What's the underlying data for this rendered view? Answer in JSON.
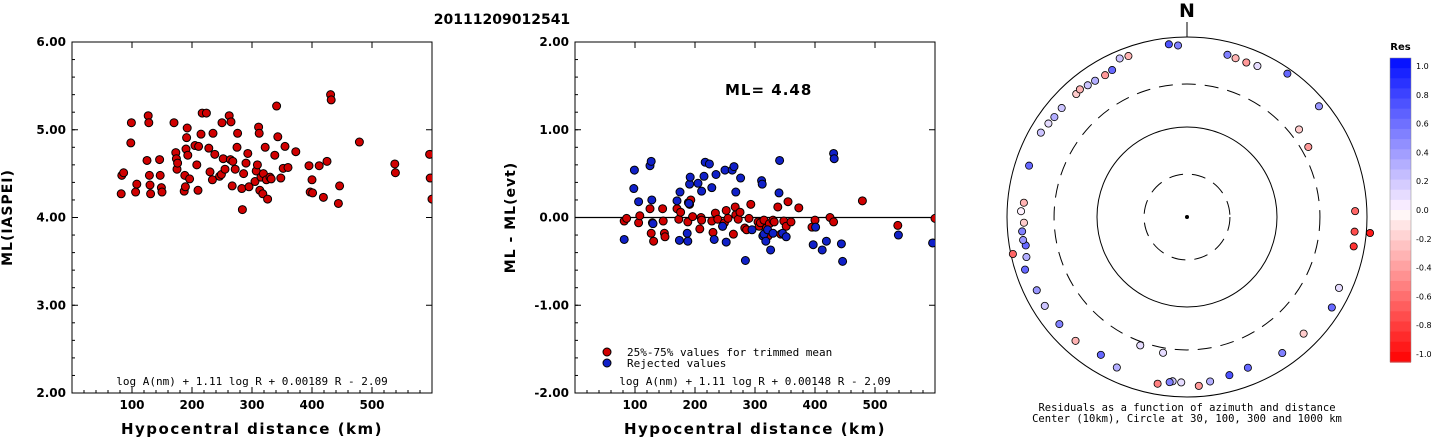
{
  "page": {
    "title": "20111209012541"
  },
  "chart_data": [
    {
      "type": "scatter",
      "title": "",
      "xlabel": "Hypocentral distance (km)",
      "ylabel": "ML(IASPEI)",
      "xlim": [
        0,
        600
      ],
      "ylim": [
        2.0,
        6.0
      ],
      "xticks": [
        100,
        200,
        300,
        400,
        500
      ],
      "yticks": [
        2.0,
        3.0,
        4.0,
        5.0,
        6.0
      ],
      "ytick_labels": [
        "2.00",
        "3.00",
        "4.00",
        "5.00",
        "6.00"
      ],
      "formula": "log A(nm) + 1.11 log R + 0.00189 R - 2.09",
      "point_color": "#d00000",
      "points": [
        [
          82,
          4.27
        ],
        [
          83,
          4.48
        ],
        [
          86,
          4.51
        ],
        [
          98,
          4.85
        ],
        [
          99,
          5.08
        ],
        [
          106,
          4.29
        ],
        [
          108,
          4.38
        ],
        [
          125,
          4.65
        ],
        [
          127,
          5.16
        ],
        [
          128,
          5.08
        ],
        [
          129,
          4.48
        ],
        [
          130,
          4.37
        ],
        [
          131,
          4.27
        ],
        [
          146,
          4.66
        ],
        [
          147,
          4.48
        ],
        [
          149,
          4.34
        ],
        [
          150,
          4.29
        ],
        [
          170,
          5.08
        ],
        [
          173,
          4.74
        ],
        [
          174,
          4.67
        ],
        [
          175,
          4.55
        ],
        [
          176,
          4.62
        ],
        [
          187,
          4.3
        ],
        [
          188,
          4.48
        ],
        [
          189,
          4.35
        ],
        [
          190,
          4.78
        ],
        [
          191,
          4.91
        ],
        [
          192,
          5.02
        ],
        [
          193,
          4.71
        ],
        [
          196,
          4.44
        ],
        [
          205,
          4.82
        ],
        [
          208,
          4.6
        ],
        [
          210,
          4.31
        ],
        [
          211,
          4.81
        ],
        [
          215,
          4.95
        ],
        [
          217,
          5.19
        ],
        [
          224,
          5.19
        ],
        [
          228,
          4.79
        ],
        [
          230,
          4.52
        ],
        [
          234,
          4.43
        ],
        [
          235,
          4.96
        ],
        [
          238,
          4.72
        ],
        [
          246,
          4.47
        ],
        [
          249,
          4.49
        ],
        [
          250,
          5.08
        ],
        [
          252,
          4.67
        ],
        [
          255,
          4.55
        ],
        [
          262,
          5.16
        ],
        [
          264,
          4.66
        ],
        [
          265,
          5.09
        ],
        [
          267,
          4.36
        ],
        [
          268,
          4.64
        ],
        [
          272,
          4.55
        ],
        [
          275,
          4.8
        ],
        [
          276,
          4.96
        ],
        [
          283,
          4.33
        ],
        [
          284,
          4.09
        ],
        [
          286,
          4.5
        ],
        [
          290,
          4.62
        ],
        [
          293,
          4.73
        ],
        [
          295,
          4.35
        ],
        [
          305,
          4.41
        ],
        [
          307,
          4.53
        ],
        [
          309,
          4.6
        ],
        [
          311,
          5.03
        ],
        [
          312,
          4.96
        ],
        [
          313,
          4.31
        ],
        [
          315,
          4.46
        ],
        [
          318,
          4.27
        ],
        [
          319,
          4.5
        ],
        [
          322,
          4.8
        ],
        [
          324,
          4.43
        ],
        [
          326,
          4.21
        ],
        [
          330,
          4.46
        ],
        [
          332,
          4.44
        ],
        [
          338,
          4.71
        ],
        [
          341,
          5.27
        ],
        [
          343,
          4.92
        ],
        [
          348,
          4.45
        ],
        [
          352,
          4.56
        ],
        [
          355,
          4.81
        ],
        [
          360,
          4.57
        ],
        [
          373,
          4.75
        ],
        [
          395,
          4.59
        ],
        [
          397,
          4.29
        ],
        [
          400,
          4.43
        ],
        [
          401,
          4.28
        ],
        [
          412,
          4.59
        ],
        [
          419,
          4.23
        ],
        [
          425,
          4.64
        ],
        [
          431,
          5.4
        ],
        [
          432,
          5.34
        ],
        [
          444,
          4.16
        ],
        [
          446,
          4.36
        ],
        [
          479,
          4.86
        ],
        [
          538,
          4.61
        ],
        [
          539,
          4.51
        ],
        [
          596,
          4.72
        ],
        [
          597,
          4.45
        ],
        [
          600,
          4.21
        ]
      ]
    },
    {
      "type": "scatter",
      "title": "",
      "xlabel": "Hypocentral distance (km)",
      "ylabel": "ML - ML(evt)",
      "xlim": [
        0,
        600
      ],
      "ylim": [
        -2.0,
        2.0
      ],
      "xticks": [
        100,
        200,
        300,
        400,
        500
      ],
      "yticks": [
        -2.0,
        -1.0,
        0.0,
        1.0,
        2.0
      ],
      "ytick_labels": [
        "-2.00",
        "-1.00",
        "0.00",
        "1.00",
        "2.00"
      ],
      "annotation": "ML= 4.48",
      "formula": "log A(nm) + 1.11 log R + 0.00148 R - 2.09",
      "legend": [
        {
          "label": "25%-75% values for trimmed mean",
          "color": "#d00000"
        },
        {
          "label": "Rejected values",
          "color": "#1020c8"
        }
      ],
      "series": [
        {
          "name": "25%-75% values for trimmed mean",
          "color": "#d00000",
          "points": [
            [
              82,
              -0.04
            ],
            [
              86,
              -0.01
            ],
            [
              106,
              -0.06
            ],
            [
              108,
              0.02
            ],
            [
              125,
              0.1
            ],
            [
              127,
              -0.18
            ],
            [
              129,
              -0.06
            ],
            [
              131,
              -0.27
            ],
            [
              146,
              0.1
            ],
            [
              147,
              -0.04
            ],
            [
              149,
              -0.18
            ],
            [
              150,
              -0.22
            ],
            [
              170,
              0.1
            ],
            [
              173,
              -0.02
            ],
            [
              176,
              0.06
            ],
            [
              188,
              -0.05
            ],
            [
              189,
              0.17
            ],
            [
              191,
              0.15
            ],
            [
              193,
              0.2
            ],
            [
              196,
              0.01
            ],
            [
              208,
              -0.13
            ],
            [
              210,
              0.0
            ],
            [
              211,
              -0.03
            ],
            [
              228,
              -0.04
            ],
            [
              230,
              -0.17
            ],
            [
              234,
              0.05
            ],
            [
              238,
              -0.02
            ],
            [
              246,
              -0.1
            ],
            [
              249,
              -0.06
            ],
            [
              252,
              0.08
            ],
            [
              255,
              -0.01
            ],
            [
              264,
              -0.19
            ],
            [
              267,
              0.12
            ],
            [
              268,
              0.03
            ],
            [
              272,
              -0.02
            ],
            [
              275,
              0.06
            ],
            [
              283,
              -0.12
            ],
            [
              286,
              -0.14
            ],
            [
              290,
              -0.01
            ],
            [
              293,
              0.15
            ],
            [
              305,
              -0.05
            ],
            [
              307,
              -0.1
            ],
            [
              309,
              -0.06
            ],
            [
              315,
              -0.03
            ],
            [
              318,
              -0.2
            ],
            [
              319,
              -0.12
            ],
            [
              322,
              -0.21
            ],
            [
              324,
              -0.07
            ],
            [
              330,
              -0.03
            ],
            [
              332,
              -0.05
            ],
            [
              338,
              0.12
            ],
            [
              343,
              -0.19
            ],
            [
              348,
              -0.04
            ],
            [
              352,
              -0.1
            ],
            [
              355,
              0.18
            ],
            [
              360,
              -0.05
            ],
            [
              373,
              0.11
            ],
            [
              395,
              -0.11
            ],
            [
              400,
              -0.03
            ],
            [
              425,
              0.0
            ],
            [
              431,
              -0.05
            ],
            [
              479,
              0.19
            ],
            [
              538,
              -0.09
            ],
            [
              600,
              -0.01
            ]
          ]
        },
        {
          "name": "Rejected values",
          "color": "#1020c8",
          "points": [
            [
              82,
              -0.25
            ],
            [
              98,
              0.33
            ],
            [
              99,
              0.54
            ],
            [
              106,
              0.18
            ],
            [
              125,
              0.59
            ],
            [
              127,
              0.64
            ],
            [
              128,
              0.2
            ],
            [
              130,
              -0.07
            ],
            [
              170,
              0.19
            ],
            [
              174,
              -0.26
            ],
            [
              175,
              0.29
            ],
            [
              187,
              -0.18
            ],
            [
              188,
              -0.27
            ],
            [
              190,
              0.16
            ],
            [
              191,
              0.38
            ],
            [
              192,
              0.46
            ],
            [
              205,
              0.39
            ],
            [
              211,
              0.3
            ],
            [
              215,
              0.47
            ],
            [
              217,
              0.63
            ],
            [
              224,
              0.61
            ],
            [
              228,
              0.34
            ],
            [
              232,
              -0.25
            ],
            [
              235,
              0.49
            ],
            [
              246,
              -0.1
            ],
            [
              250,
              0.54
            ],
            [
              252,
              -0.28
            ],
            [
              262,
              0.54
            ],
            [
              265,
              0.58
            ],
            [
              268,
              0.29
            ],
            [
              276,
              0.45
            ],
            [
              284,
              -0.49
            ],
            [
              295,
              -0.14
            ],
            [
              311,
              0.42
            ],
            [
              312,
              0.38
            ],
            [
              313,
              -0.21
            ],
            [
              315,
              -0.19
            ],
            [
              318,
              -0.27
            ],
            [
              321,
              -0.14
            ],
            [
              326,
              -0.37
            ],
            [
              330,
              -0.18
            ],
            [
              340,
              0.28
            ],
            [
              341,
              0.65
            ],
            [
              346,
              -0.18
            ],
            [
              352,
              -0.22
            ],
            [
              397,
              -0.31
            ],
            [
              401,
              -0.11
            ],
            [
              412,
              -0.37
            ],
            [
              419,
              -0.27
            ],
            [
              431,
              0.73
            ],
            [
              432,
              0.67
            ],
            [
              444,
              -0.3
            ],
            [
              446,
              -0.5
            ],
            [
              539,
              -0.2
            ],
            [
              596,
              -0.29
            ]
          ]
        }
      ]
    },
    {
      "type": "scatter",
      "title": "N",
      "caption": [
        "Residuals as a function of azimuth and distance",
        "Center (10km), Circle at 30, 100, 300 and 1000 km"
      ],
      "colorbar": {
        "title": "Res",
        "labels": [
          "1.0",
          "0.8",
          "0.6",
          "0.4",
          "0.2",
          "0.0",
          "-0.2",
          "-0.4",
          "-0.6",
          "-0.8",
          "-1.0"
        ],
        "max_color": "#0010ff",
        "zero_color": "#ffffff",
        "min_color": "#ff0000"
      },
      "rings_km": [
        30,
        100,
        300,
        1000
      ],
      "points_az_dist_res": [
        [
          337,
          820,
          0.2
        ],
        [
          340,
          800,
          -0.3
        ],
        [
          354,
          850,
          0.7
        ],
        [
          357,
          810,
          0.5
        ],
        [
          14,
          720,
          0.5
        ],
        [
          17,
          700,
          -0.3
        ],
        [
          21,
          690,
          -0.4
        ],
        [
          25,
          710,
          0.1
        ],
        [
          35,
          880,
          0.6
        ],
        [
          50,
          820,
          0.4
        ],
        [
          88,
          740,
          -0.6
        ],
        [
          95,
          740,
          -0.7
        ],
        [
          100,
          760,
          -0.8
        ],
        [
          115,
          730,
          0.1
        ],
        [
          122,
          790,
          0.6
        ],
        [
          135,
          680,
          -0.2
        ],
        [
          145,
          700,
          0.5
        ],
        [
          158,
          640,
          0.6
        ],
        [
          165,
          660,
          0.7
        ],
        [
          172,
          700,
          0.3
        ],
        [
          176,
          760,
          -0.4
        ],
        [
          182,
          690,
          0.1
        ],
        [
          185,
          680,
          0.2
        ],
        [
          186,
          700,
          0.5
        ],
        [
          190,
          760,
          -0.5
        ],
        [
          190,
          340,
          0.1
        ],
        [
          200,
          330,
          0.1
        ],
        [
          205,
          700,
          0.3
        ],
        [
          212,
          640,
          0.6
        ],
        [
          222,
          710,
          -0.3
        ],
        [
          230,
          710,
          0.5
        ],
        [
          238,
          730,
          0.2
        ],
        [
          244,
          720,
          0.4
        ],
        [
          252,
          780,
          0.6
        ],
        [
          256,
          690,
          0.3
        ],
        [
          260,
          660,
          0.6
        ],
        [
          262,
          690,
          0.4
        ],
        [
          265,
          690,
          0.5
        ],
        [
          268,
          650,
          -0.2
        ],
        [
          272,
          700,
          0.0
        ],
        [
          275,
          660,
          -0.3
        ],
        [
          288,
          700,
          0.6
        ],
        [
          300,
          750,
          0.2
        ],
        [
          304,
          720,
          0.1
        ],
        [
          307,
          700,
          0.3
        ],
        [
          311,
          700,
          0.2
        ],
        [
          318,
          690,
          -0.2
        ],
        [
          320,
          710,
          -0.3
        ],
        [
          323,
          680,
          0.2
        ],
        [
          326,
          670,
          0.3
        ],
        [
          330,
          660,
          -0.4
        ],
        [
          333,
          680,
          0.6
        ],
        [
          52,
          380,
          -0.2
        ],
        [
          60,
          360,
          -0.4
        ],
        [
          95,
          1100,
          -0.9
        ],
        [
          258,
          950,
          -0.6
        ]
      ]
    }
  ]
}
